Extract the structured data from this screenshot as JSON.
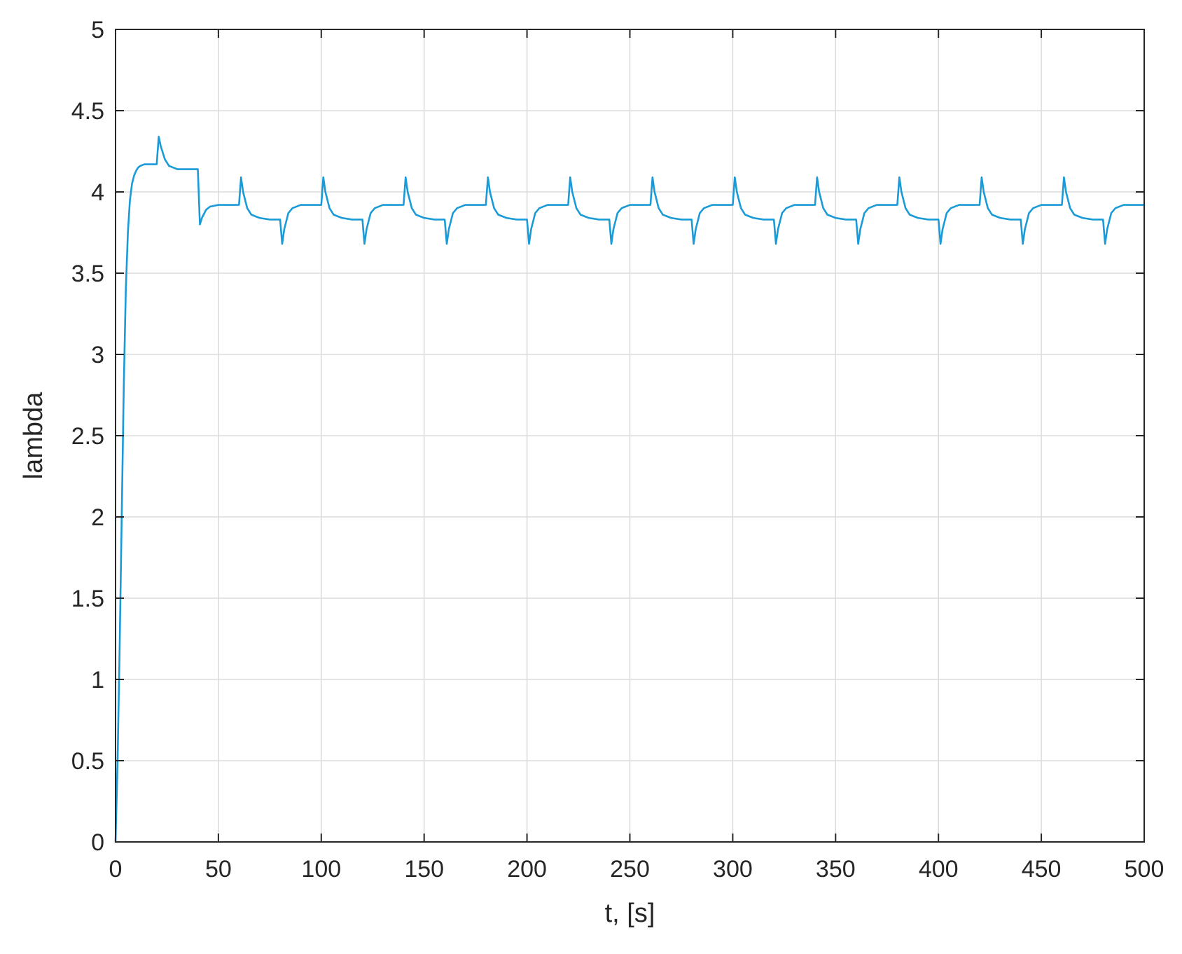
{
  "chart_data": {
    "type": "line",
    "title": "",
    "xlabel": "t, [s]",
    "ylabel": "lambda",
    "xlim": [
      0,
      500
    ],
    "ylim": [
      0,
      5
    ],
    "xticks": [
      0,
      50,
      100,
      150,
      200,
      250,
      300,
      350,
      400,
      450,
      500
    ],
    "yticks": [
      0,
      0.5,
      1,
      1.5,
      2,
      2.5,
      3,
      3.5,
      4,
      4.5,
      5
    ],
    "xtick_labels": [
      "0",
      "50",
      "100",
      "150",
      "200",
      "250",
      "300",
      "350",
      "400",
      "450",
      "500"
    ],
    "ytick_labels": [
      "0",
      "0.5",
      "1",
      "1.5",
      "2",
      "2.5",
      "3",
      "3.5",
      "4",
      "4.5",
      "5"
    ],
    "grid": true,
    "series": [
      {
        "color": "#1a9bd7",
        "x": [
          0,
          1,
          2,
          3,
          4,
          5,
          6,
          7,
          8,
          9,
          10,
          11,
          12,
          14,
          16,
          18,
          20,
          21,
          22,
          24,
          26,
          28,
          30,
          35,
          40,
          41,
          42,
          44,
          46,
          50,
          55,
          60,
          61,
          62,
          64,
          66,
          70,
          75,
          80,
          81,
          82,
          84,
          86,
          90,
          95,
          100,
          101,
          102,
          104,
          106,
          110,
          115,
          120,
          121,
          122,
          124,
          126,
          130,
          135,
          140,
          141,
          142,
          144,
          146,
          150,
          155,
          160,
          161,
          162,
          164,
          166,
          170,
          175,
          180,
          181,
          182,
          184,
          186,
          190,
          195,
          200,
          201,
          202,
          204,
          206,
          210,
          215,
          220,
          221,
          222,
          224,
          226,
          230,
          235,
          240,
          241,
          242,
          244,
          246,
          250,
          255,
          260,
          261,
          262,
          264,
          266,
          270,
          275,
          280,
          281,
          282,
          284,
          286,
          290,
          295,
          300,
          301,
          302,
          304,
          306,
          310,
          315,
          320,
          321,
          322,
          324,
          326,
          330,
          335,
          340,
          341,
          342,
          344,
          346,
          350,
          355,
          360,
          361,
          362,
          364,
          366,
          370,
          375,
          380,
          381,
          382,
          384,
          386,
          390,
          395,
          400,
          401,
          402,
          404,
          406,
          410,
          415,
          420,
          421,
          422,
          424,
          426,
          430,
          435,
          440,
          441,
          442,
          444,
          446,
          450,
          455,
          460,
          461,
          462,
          464,
          466,
          470,
          475,
          480,
          481,
          482,
          484,
          486,
          490,
          495,
          500
        ],
        "y": [
          0,
          0.5,
          1.2,
          2.0,
          2.8,
          3.4,
          3.75,
          3.95,
          4.05,
          4.1,
          4.13,
          4.15,
          4.16,
          4.17,
          4.17,
          4.17,
          4.17,
          4.34,
          4.28,
          4.2,
          4.16,
          4.15,
          4.14,
          4.14,
          4.14,
          3.8,
          3.84,
          3.89,
          3.91,
          3.92,
          3.92,
          3.92,
          4.09,
          4.0,
          3.9,
          3.86,
          3.84,
          3.83,
          3.83,
          3.68,
          3.77,
          3.87,
          3.9,
          3.92,
          3.92,
          3.92,
          4.09,
          4.0,
          3.9,
          3.86,
          3.84,
          3.83,
          3.83,
          3.68,
          3.77,
          3.87,
          3.9,
          3.92,
          3.92,
          3.92,
          4.09,
          4.0,
          3.9,
          3.86,
          3.84,
          3.83,
          3.83,
          3.68,
          3.77,
          3.87,
          3.9,
          3.92,
          3.92,
          3.92,
          4.09,
          4.0,
          3.9,
          3.86,
          3.84,
          3.83,
          3.83,
          3.68,
          3.77,
          3.87,
          3.9,
          3.92,
          3.92,
          3.92,
          4.09,
          4.0,
          3.9,
          3.86,
          3.84,
          3.83,
          3.83,
          3.68,
          3.77,
          3.87,
          3.9,
          3.92,
          3.92,
          3.92,
          4.09,
          4.0,
          3.9,
          3.86,
          3.84,
          3.83,
          3.83,
          3.68,
          3.77,
          3.87,
          3.9,
          3.92,
          3.92,
          3.92,
          4.09,
          4.0,
          3.9,
          3.86,
          3.84,
          3.83,
          3.83,
          3.68,
          3.77,
          3.87,
          3.9,
          3.92,
          3.92,
          3.92,
          4.09,
          4.0,
          3.9,
          3.86,
          3.84,
          3.83,
          3.83,
          3.68,
          3.77,
          3.87,
          3.9,
          3.92,
          3.92,
          3.92,
          4.09,
          4.0,
          3.9,
          3.86,
          3.84,
          3.83,
          3.83,
          3.68,
          3.77,
          3.87,
          3.9,
          3.92,
          3.92,
          3.92,
          4.09,
          4.0,
          3.9,
          3.86,
          3.84,
          3.83,
          3.83,
          3.68,
          3.77,
          3.87,
          3.9,
          3.92,
          3.92,
          3.92,
          4.09,
          4.0,
          3.9,
          3.86,
          3.84,
          3.83,
          3.83,
          3.68,
          3.77,
          3.87,
          3.9,
          3.92,
          3.92,
          3.92
        ]
      }
    ]
  }
}
